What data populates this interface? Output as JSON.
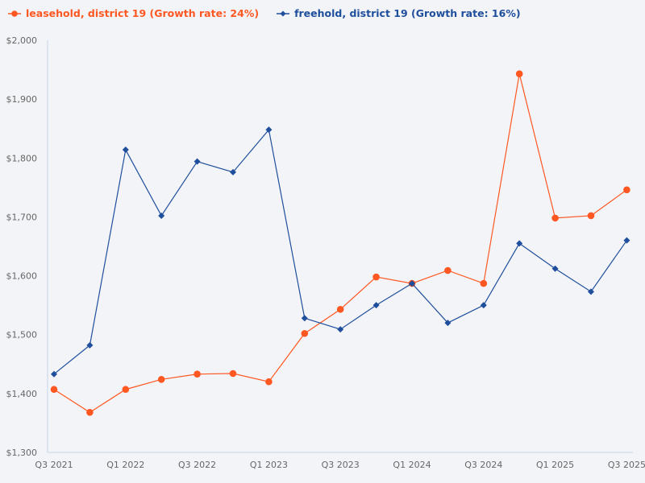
{
  "legend": [
    {
      "label": "leasehold, district 19 (Growth rate: 24%)",
      "color": "#ff5722",
      "marker": "circle"
    },
    {
      "label": "freehold, district 19 (Growth rate: 16%)",
      "color": "#1f4e9c",
      "marker": "diamond"
    }
  ],
  "chart_data": {
    "type": "line",
    "title": "",
    "xlabel": "",
    "ylabel": "",
    "ylim": [
      1300,
      2000
    ],
    "yticks": [
      "$1,300",
      "$1,400",
      "$1,500",
      "$1,600",
      "$1,700",
      "$1,800",
      "$1,900",
      "$2,000"
    ],
    "ytick_values": [
      1300,
      1400,
      1500,
      1600,
      1700,
      1800,
      1900,
      2000
    ],
    "xtick_labels": [
      "Q3 2021",
      "Q1 2022",
      "Q3 2022",
      "Q1 2023",
      "Q3 2023",
      "Q1 2024",
      "Q3 2024",
      "Q1 2025",
      "Q3 2025"
    ],
    "categories": [
      "Q3 2021",
      "Q4 2021",
      "Q1 2022",
      "Q2 2022",
      "Q3 2022",
      "Q4 2022",
      "Q1 2023",
      "Q2 2023",
      "Q3 2023",
      "Q4 2023",
      "Q1 2024",
      "Q2 2024",
      "Q3 2024",
      "Q4 2024",
      "Q1 2025",
      "Q2 2025",
      "Q3 2025"
    ],
    "series": [
      {
        "name": "leasehold, district 19 (Growth rate: 24%)",
        "color": "#ff5722",
        "marker": "circle",
        "values": [
          1407,
          1368,
          1407,
          1424,
          1433,
          1434,
          1420,
          1502,
          1543,
          1598,
          1587,
          1609,
          1587,
          1943,
          1698,
          1702,
          1746
        ]
      },
      {
        "name": "freehold, district 19 (Growth rate: 16%)",
        "color": "#1f4e9c",
        "marker": "diamond",
        "values": [
          1433,
          1482,
          1814,
          1702,
          1794,
          1776,
          1848,
          1528,
          1509,
          1550,
          1587,
          1520,
          1550,
          1655,
          1612,
          1573,
          1660
        ]
      }
    ],
    "grid": false,
    "legend_position": "top-left"
  }
}
